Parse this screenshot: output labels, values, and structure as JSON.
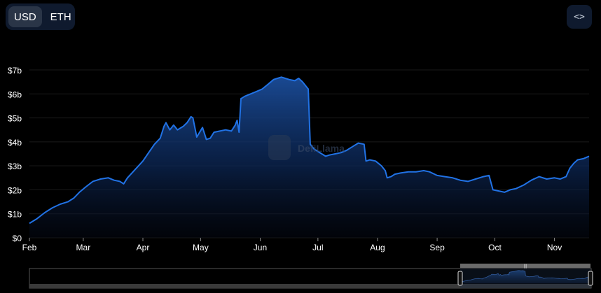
{
  "toggle": {
    "usd_label": "USD",
    "eth_label": "ETH",
    "selected": "USD"
  },
  "embed_icon": "code-brackets-icon",
  "watermark": {
    "text": "DefiLlama",
    "icon": "llama-logo-icon"
  },
  "colors": {
    "line": "#2172e5",
    "fill_top": "#1b4d9a",
    "background": "#000000",
    "grid": "#1a1a1a",
    "axis_text": "#ffffff"
  },
  "chart_data": {
    "type": "area",
    "title": "",
    "xlabel": "",
    "ylabel": "",
    "ylim": [
      0,
      7000000000
    ],
    "yticks": [
      {
        "value": 0,
        "label": "$0"
      },
      {
        "value": 1000000000,
        "label": "$1b"
      },
      {
        "value": 2000000000,
        "label": "$2b"
      },
      {
        "value": 3000000000,
        "label": "$3b"
      },
      {
        "value": 4000000000,
        "label": "$4b"
      },
      {
        "value": 5000000000,
        "label": "$5b"
      },
      {
        "value": 6000000000,
        "label": "$6b"
      },
      {
        "value": 7000000000,
        "label": "$7b"
      }
    ],
    "xlim": [
      "2021-02-01",
      "2021-11-19"
    ],
    "xticks": [
      {
        "date": "2021-02-01",
        "label": "Feb"
      },
      {
        "date": "2021-03-01",
        "label": "Mar"
      },
      {
        "date": "2021-04-01",
        "label": "Apr"
      },
      {
        "date": "2021-05-01",
        "label": "May"
      },
      {
        "date": "2021-06-01",
        "label": "Jun"
      },
      {
        "date": "2021-07-01",
        "label": "Jul"
      },
      {
        "date": "2021-08-01",
        "label": "Aug"
      },
      {
        "date": "2021-09-01",
        "label": "Sep"
      },
      {
        "date": "2021-10-01",
        "label": "Oct"
      },
      {
        "date": "2021-11-01",
        "label": "Nov"
      }
    ],
    "grid": true,
    "legend": "none",
    "series": [
      {
        "values": [
          [
            "2021-02-01",
            600000000
          ],
          [
            "2021-02-05",
            800000000
          ],
          [
            "2021-02-09",
            1050000000
          ],
          [
            "2021-02-13",
            1250000000
          ],
          [
            "2021-02-17",
            1400000000
          ],
          [
            "2021-02-21",
            1500000000
          ],
          [
            "2021-02-24",
            1650000000
          ],
          [
            "2021-02-27",
            1900000000
          ],
          [
            "2021-03-02",
            2100000000
          ],
          [
            "2021-03-06",
            2350000000
          ],
          [
            "2021-03-10",
            2450000000
          ],
          [
            "2021-03-14",
            2500000000
          ],
          [
            "2021-03-17",
            2400000000
          ],
          [
            "2021-03-20",
            2350000000
          ],
          [
            "2021-03-22",
            2250000000
          ],
          [
            "2021-03-24",
            2500000000
          ],
          [
            "2021-03-28",
            2850000000
          ],
          [
            "2021-04-01",
            3200000000
          ],
          [
            "2021-04-04",
            3550000000
          ],
          [
            "2021-04-07",
            3900000000
          ],
          [
            "2021-04-10",
            4150000000
          ],
          [
            "2021-04-12",
            4650000000
          ],
          [
            "2021-04-13",
            4800000000
          ],
          [
            "2021-04-15",
            4500000000
          ],
          [
            "2021-04-17",
            4700000000
          ],
          [
            "2021-04-19",
            4500000000
          ],
          [
            "2021-04-22",
            4650000000
          ],
          [
            "2021-04-24",
            4800000000
          ],
          [
            "2021-04-26",
            5050000000
          ],
          [
            "2021-04-27",
            5000000000
          ],
          [
            "2021-04-29",
            4200000000
          ],
          [
            "2021-05-02",
            4600000000
          ],
          [
            "2021-05-04",
            4100000000
          ],
          [
            "2021-05-06",
            4150000000
          ],
          [
            "2021-05-08",
            4400000000
          ],
          [
            "2021-05-11",
            4450000000
          ],
          [
            "2021-05-14",
            4500000000
          ],
          [
            "2021-05-17",
            4450000000
          ],
          [
            "2021-05-19",
            4700000000
          ],
          [
            "2021-05-20",
            4900000000
          ],
          [
            "2021-05-21",
            4400000000
          ],
          [
            "2021-05-22",
            5800000000
          ],
          [
            "2021-05-24",
            5900000000
          ],
          [
            "2021-05-27",
            6000000000
          ],
          [
            "2021-05-30",
            6100000000
          ],
          [
            "2021-06-02",
            6200000000
          ],
          [
            "2021-06-05",
            6400000000
          ],
          [
            "2021-06-08",
            6600000000
          ],
          [
            "2021-06-10",
            6650000000
          ],
          [
            "2021-06-12",
            6700000000
          ],
          [
            "2021-06-14",
            6650000000
          ],
          [
            "2021-06-16",
            6600000000
          ],
          [
            "2021-06-19",
            6550000000
          ],
          [
            "2021-06-21",
            6650000000
          ],
          [
            "2021-06-23",
            6500000000
          ],
          [
            "2021-06-25",
            6300000000
          ],
          [
            "2021-06-26",
            6200000000
          ],
          [
            "2021-06-27",
            3900000000
          ],
          [
            "2021-06-29",
            3700000000
          ],
          [
            "2021-07-01",
            3600000000
          ],
          [
            "2021-07-03",
            3500000000
          ],
          [
            "2021-07-05",
            3400000000
          ],
          [
            "2021-07-07",
            3450000000
          ],
          [
            "2021-07-10",
            3500000000
          ],
          [
            "2021-07-13",
            3550000000
          ],
          [
            "2021-07-16",
            3650000000
          ],
          [
            "2021-07-19",
            3800000000
          ],
          [
            "2021-07-22",
            3950000000
          ],
          [
            "2021-07-25",
            3900000000
          ],
          [
            "2021-07-26",
            3200000000
          ],
          [
            "2021-07-28",
            3250000000
          ],
          [
            "2021-07-31",
            3200000000
          ],
          [
            "2021-08-03",
            3000000000
          ],
          [
            "2021-08-05",
            2800000000
          ],
          [
            "2021-08-06",
            2500000000
          ],
          [
            "2021-08-08",
            2550000000
          ],
          [
            "2021-08-10",
            2650000000
          ],
          [
            "2021-08-13",
            2700000000
          ],
          [
            "2021-08-17",
            2750000000
          ],
          [
            "2021-08-21",
            2750000000
          ],
          [
            "2021-08-25",
            2800000000
          ],
          [
            "2021-08-28",
            2750000000
          ],
          [
            "2021-09-01",
            2600000000
          ],
          [
            "2021-09-05",
            2550000000
          ],
          [
            "2021-09-09",
            2500000000
          ],
          [
            "2021-09-13",
            2400000000
          ],
          [
            "2021-09-17",
            2350000000
          ],
          [
            "2021-09-21",
            2450000000
          ],
          [
            "2021-09-25",
            2550000000
          ],
          [
            "2021-09-28",
            2600000000
          ],
          [
            "2021-09-30",
            2000000000
          ],
          [
            "2021-10-03",
            1950000000
          ],
          [
            "2021-10-06",
            1900000000
          ],
          [
            "2021-10-09",
            2000000000
          ],
          [
            "2021-10-12",
            2050000000
          ],
          [
            "2021-10-16",
            2200000000
          ],
          [
            "2021-10-20",
            2400000000
          ],
          [
            "2021-10-24",
            2550000000
          ],
          [
            "2021-10-28",
            2450000000
          ],
          [
            "2021-11-01",
            2500000000
          ],
          [
            "2021-11-04",
            2450000000
          ],
          [
            "2021-11-07",
            2550000000
          ],
          [
            "2021-11-09",
            2900000000
          ],
          [
            "2021-11-11",
            3100000000
          ],
          [
            "2021-11-13",
            3250000000
          ],
          [
            "2021-11-16",
            3300000000
          ],
          [
            "2021-11-19",
            3400000000
          ]
        ]
      }
    ]
  }
}
